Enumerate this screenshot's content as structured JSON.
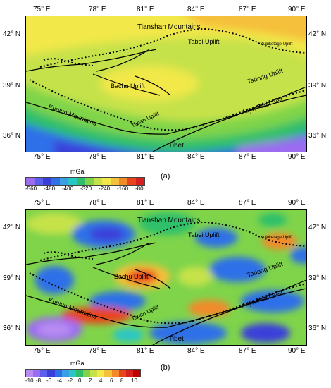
{
  "lon_ticks": [
    "75° E",
    "78° E",
    "81° E",
    "84° E",
    "87° E",
    "90° E"
  ],
  "lat_ticks": [
    "42° N",
    "39° N",
    "36° N"
  ],
  "labels": {
    "tianshan": "Tianshan Mountains",
    "tabei": "Tabei Uplift",
    "kuluketage": "Kuluketage Uplift",
    "tadong": "Tadong Uplift",
    "bachu": "Bachu Uplift",
    "kunlun": "Kunlun Mountains",
    "tanan": "Tanan Uplift",
    "altyn": "Altyn Fault Belt",
    "tibet": "Tibet"
  },
  "panel_a": {
    "caption": "(a)",
    "unit": "mGal",
    "colorbar_ticks": [
      "-560",
      "-480",
      "-400",
      "-320",
      "-240",
      "-160",
      "-80"
    ],
    "colors": [
      "#9b6cf0",
      "#5b5ff0",
      "#3a3fd9",
      "#2f6fe8",
      "#3aa0e6",
      "#29c6c6",
      "#2fbf6a",
      "#7fd44a",
      "#c6e24a",
      "#f2e84a",
      "#f5c03a",
      "#f28a2a",
      "#e8451f",
      "#d81f1f"
    ]
  },
  "panel_b": {
    "caption": "(b)",
    "unit": "mGal",
    "colorbar_ticks": [
      "-10",
      "-8",
      "-6",
      "-4",
      "-2",
      "0",
      "2",
      "4",
      "6",
      "8",
      "10"
    ],
    "colors": [
      "#b88cf0",
      "#9b6cf0",
      "#5b5ff0",
      "#3a3fd9",
      "#2f6fe8",
      "#3aa0e6",
      "#29c6c6",
      "#2fbf6a",
      "#7fd44a",
      "#c6e24a",
      "#f2e84a",
      "#f5c03a",
      "#f28a2a",
      "#e8451f",
      "#d81f1f",
      "#c00000"
    ]
  }
}
